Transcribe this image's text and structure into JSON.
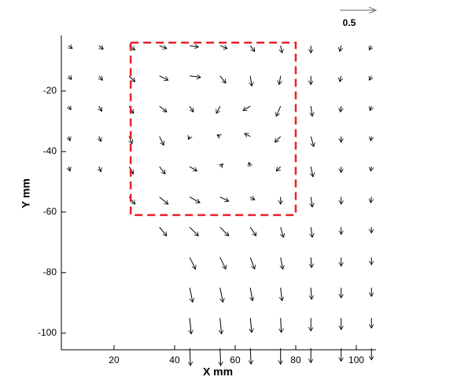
{
  "chart_data": {
    "type": "quiver",
    "x_label": "X mm",
    "y_label": "Y mm",
    "xlim": [
      2.6,
      106.5
    ],
    "ylim": [
      -105.5,
      -1.6
    ],
    "xticks": [
      20,
      40,
      60,
      80,
      100
    ],
    "yticks": [
      -20,
      -40,
      -60,
      -80,
      -100
    ],
    "reference_vector": 0.5,
    "color": "#000000",
    "region": {
      "x": [
        25.5,
        80
      ],
      "y": [
        -61,
        -4
      ],
      "color": "#e8202a"
    },
    "x": [
      5,
      15,
      25,
      35,
      45,
      55,
      65,
      75,
      85,
      95,
      105
    ],
    "y": [
      -5,
      -15,
      -25,
      -35,
      -45,
      -55,
      -65,
      -75,
      -85,
      -95,
      -105
    ],
    "u": [
      [
        0.05,
        0.06,
        0.08,
        0.1,
        0.12,
        0.1,
        0.06,
        0.02,
        0.0,
        -0.02,
        -0.03
      ],
      [
        0.04,
        0.05,
        0.08,
        0.12,
        0.15,
        0.08,
        0.02,
        -0.02,
        0.0,
        -0.02,
        -0.03
      ],
      [
        0.03,
        0.04,
        0.06,
        0.1,
        0.05,
        -0.05,
        -0.1,
        -0.06,
        0.02,
        -0.01,
        -0.02
      ],
      [
        0.02,
        0.03,
        0.04,
        0.06,
        -0.02,
        -0.04,
        -0.08,
        -0.08,
        0.04,
        0.0,
        -0.01
      ],
      [
        0.02,
        0.03,
        0.06,
        0.08,
        0.1,
        0.04,
        -0.02,
        -0.06,
        0.03,
        0.0,
        -0.01
      ],
      [
        null,
        null,
        0.08,
        0.12,
        0.14,
        0.12,
        0.06,
        0.0,
        0.02,
        0.0,
        -0.01
      ],
      [
        null,
        null,
        null,
        0.1,
        0.12,
        0.12,
        0.08,
        0.04,
        0.02,
        0.0,
        0.0
      ],
      [
        null,
        null,
        null,
        null,
        0.08,
        0.08,
        0.06,
        0.03,
        0.01,
        0.0,
        0.0
      ],
      [
        null,
        null,
        null,
        null,
        0.04,
        0.04,
        0.03,
        0.02,
        0.01,
        0.0,
        0.0
      ],
      [
        null,
        null,
        null,
        null,
        0.02,
        0.02,
        0.02,
        0.01,
        0.0,
        0.0,
        0.0
      ],
      [
        null,
        null,
        null,
        null,
        0.01,
        0.01,
        0.01,
        0.0,
        0.0,
        0.0,
        0.0
      ]
    ],
    "v": [
      [
        -0.04,
        -0.05,
        -0.06,
        -0.04,
        -0.02,
        -0.04,
        -0.08,
        -0.1,
        -0.1,
        -0.08,
        -0.06
      ],
      [
        -0.05,
        -0.06,
        -0.08,
        -0.06,
        -0.02,
        -0.1,
        -0.14,
        -0.12,
        -0.12,
        -0.08,
        -0.06
      ],
      [
        -0.05,
        -0.07,
        -0.1,
        -0.08,
        -0.08,
        -0.1,
        -0.06,
        -0.14,
        -0.14,
        -0.08,
        -0.06
      ],
      [
        -0.06,
        -0.07,
        -0.1,
        -0.12,
        -0.04,
        0.02,
        0.04,
        -0.08,
        -0.14,
        -0.08,
        -0.06
      ],
      [
        -0.06,
        -0.07,
        -0.1,
        -0.1,
        -0.06,
        0.04,
        0.06,
        -0.06,
        -0.14,
        -0.08,
        -0.06
      ],
      [
        null,
        null,
        -0.1,
        -0.1,
        -0.08,
        -0.06,
        -0.04,
        -0.1,
        -0.14,
        -0.1,
        -0.08
      ],
      [
        null,
        null,
        null,
        -0.12,
        -0.12,
        -0.12,
        -0.12,
        -0.14,
        -0.14,
        -0.1,
        -0.08
      ],
      [
        null,
        null,
        null,
        null,
        -0.16,
        -0.16,
        -0.16,
        -0.16,
        -0.14,
        -0.12,
        -0.1
      ],
      [
        null,
        null,
        null,
        null,
        -0.2,
        -0.2,
        -0.18,
        -0.18,
        -0.16,
        -0.14,
        -0.12
      ],
      [
        null,
        null,
        null,
        null,
        -0.22,
        -0.22,
        -0.2,
        -0.2,
        -0.18,
        -0.16,
        -0.14
      ],
      [
        null,
        null,
        null,
        null,
        -0.24,
        -0.24,
        -0.22,
        -0.22,
        -0.2,
        -0.18,
        -0.16
      ]
    ]
  }
}
